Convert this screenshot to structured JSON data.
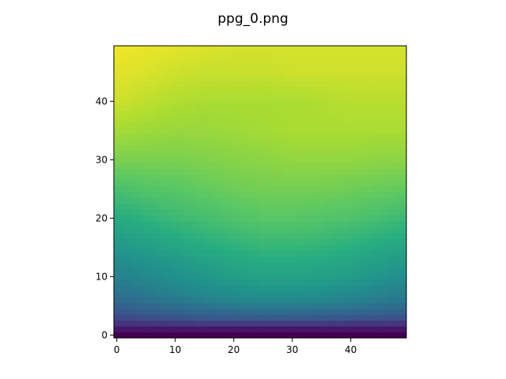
{
  "chart_data": {
    "type": "heatmap",
    "title": "ppg_0.png",
    "xlabel": "",
    "ylabel": "",
    "grid": false,
    "colormap": "viridis",
    "origin": "lower",
    "grid_size": [
      50,
      50
    ],
    "xlim": [
      -0.5,
      49.5
    ],
    "ylim": [
      -0.5,
      49.5
    ],
    "x_ticks": [
      0,
      10,
      20,
      30,
      40
    ],
    "y_ticks": [
      0,
      10,
      20,
      30,
      40
    ],
    "value_range": [
      0,
      1
    ],
    "x_anchors": [
      0,
      5,
      10,
      15,
      20,
      25,
      30,
      35,
      40,
      45,
      49
    ],
    "y_anchors": [
      0,
      1,
      2,
      3,
      4,
      5,
      6,
      8,
      10,
      13,
      16,
      20,
      25,
      30,
      35,
      40,
      45,
      49
    ],
    "values_coarse": [
      [
        0.0,
        0.0,
        0.0,
        0.0,
        0.0,
        0.0,
        0.0,
        0.0,
        0.0,
        0.0,
        0.0
      ],
      [
        0.06,
        0.06,
        0.06,
        0.06,
        0.06,
        0.06,
        0.06,
        0.06,
        0.06,
        0.06,
        0.06
      ],
      [
        0.15,
        0.16,
        0.17,
        0.18,
        0.18,
        0.18,
        0.18,
        0.18,
        0.17,
        0.17,
        0.16
      ],
      [
        0.22,
        0.24,
        0.26,
        0.28,
        0.29,
        0.29,
        0.29,
        0.28,
        0.27,
        0.26,
        0.25
      ],
      [
        0.27,
        0.3,
        0.32,
        0.34,
        0.35,
        0.36,
        0.36,
        0.35,
        0.34,
        0.33,
        0.31
      ],
      [
        0.31,
        0.34,
        0.37,
        0.39,
        0.41,
        0.42,
        0.42,
        0.41,
        0.4,
        0.38,
        0.36
      ],
      [
        0.35,
        0.38,
        0.41,
        0.44,
        0.46,
        0.47,
        0.47,
        0.46,
        0.44,
        0.42,
        0.4
      ],
      [
        0.4,
        0.43,
        0.46,
        0.49,
        0.51,
        0.53,
        0.53,
        0.52,
        0.5,
        0.47,
        0.45
      ],
      [
        0.44,
        0.47,
        0.5,
        0.53,
        0.56,
        0.58,
        0.58,
        0.57,
        0.55,
        0.52,
        0.49
      ],
      [
        0.49,
        0.52,
        0.55,
        0.58,
        0.61,
        0.63,
        0.63,
        0.62,
        0.6,
        0.57,
        0.55
      ],
      [
        0.55,
        0.58,
        0.61,
        0.64,
        0.66,
        0.68,
        0.68,
        0.67,
        0.65,
        0.63,
        0.61
      ],
      [
        0.62,
        0.65,
        0.68,
        0.7,
        0.72,
        0.74,
        0.74,
        0.73,
        0.72,
        0.7,
        0.68
      ],
      [
        0.71,
        0.73,
        0.74,
        0.76,
        0.78,
        0.79,
        0.79,
        0.79,
        0.78,
        0.77,
        0.76
      ],
      [
        0.8,
        0.8,
        0.8,
        0.81,
        0.82,
        0.83,
        0.84,
        0.84,
        0.84,
        0.83,
        0.83
      ],
      [
        0.87,
        0.86,
        0.85,
        0.85,
        0.86,
        0.87,
        0.88,
        0.88,
        0.88,
        0.88,
        0.88
      ],
      [
        0.93,
        0.91,
        0.89,
        0.88,
        0.88,
        0.88,
        0.88,
        0.89,
        0.9,
        0.9,
        0.9
      ],
      [
        0.96,
        0.95,
        0.93,
        0.92,
        0.92,
        0.92,
        0.93,
        0.93,
        0.93,
        0.93,
        0.93
      ],
      [
        0.98,
        0.97,
        0.96,
        0.95,
        0.94,
        0.94,
        0.94,
        0.94,
        0.94,
        0.94,
        0.94
      ]
    ]
  }
}
